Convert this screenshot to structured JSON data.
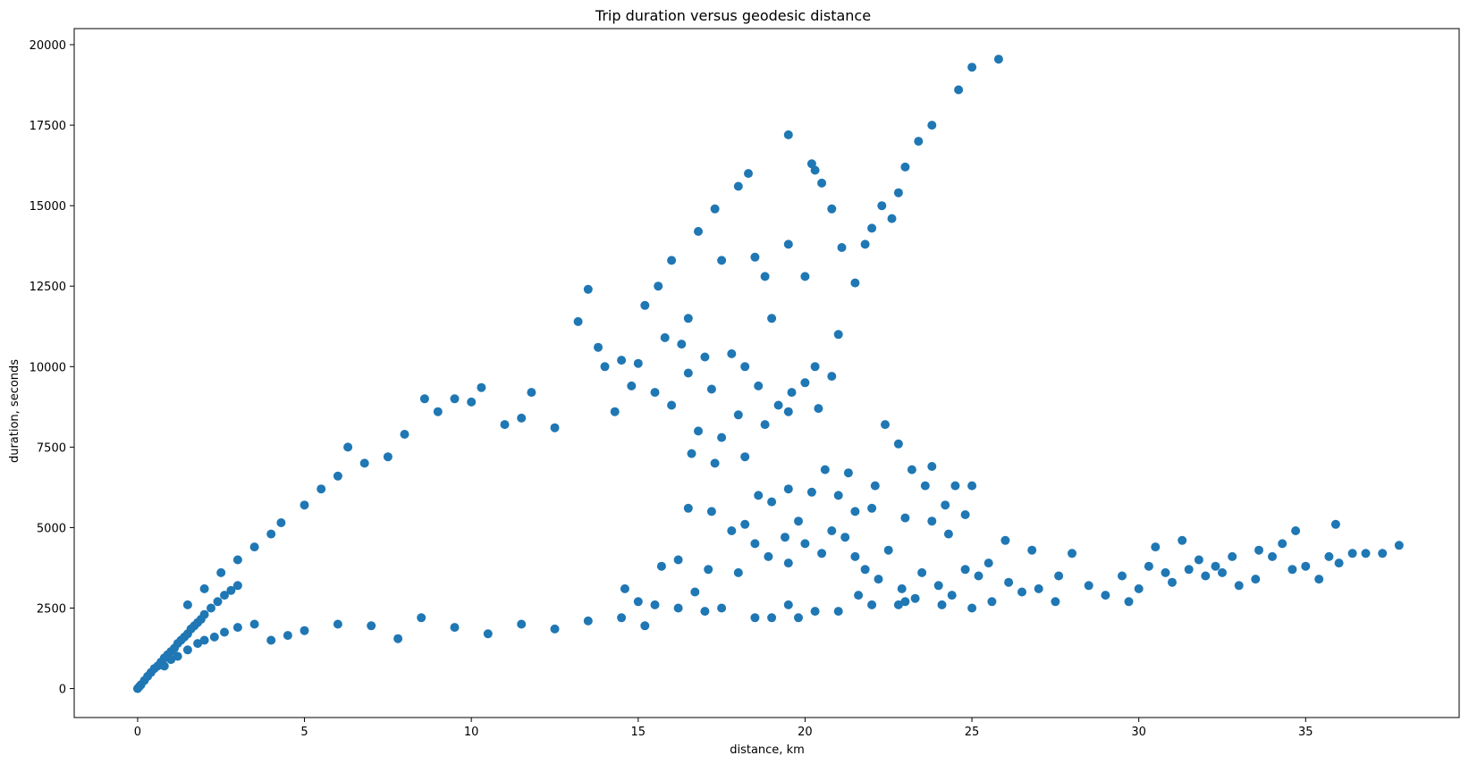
{
  "chart_data": {
    "type": "scatter",
    "title": "Trip duration versus geodesic distance",
    "xlabel": "distance, km",
    "ylabel": "duration, seconds",
    "xlim": [
      -1.9,
      39.6
    ],
    "ylim": [
      -900,
      20500
    ],
    "xticks": [
      0,
      5,
      10,
      15,
      20,
      25,
      30,
      35
    ],
    "yticks": [
      0,
      2500,
      5000,
      7500,
      10000,
      12500,
      15000,
      17500,
      20000
    ],
    "xtick_labels": [
      "0",
      "5",
      "10",
      "15",
      "20",
      "25",
      "30",
      "35"
    ],
    "ytick_labels": [
      "0",
      "2500",
      "5000",
      "7500",
      "10000",
      "12500",
      "15000",
      "17500",
      "20000"
    ],
    "grid": false,
    "legend": "none",
    "point_color": "#1f77b4",
    "series": [
      {
        "points": [
          [
            0.0,
            0
          ],
          [
            0.05,
            60
          ],
          [
            0.1,
            120
          ],
          [
            0.2,
            250
          ],
          [
            0.3,
            380
          ],
          [
            0.4,
            500
          ],
          [
            0.5,
            620
          ],
          [
            0.6,
            700
          ],
          [
            0.7,
            820
          ],
          [
            0.8,
            950
          ],
          [
            0.9,
            1050
          ],
          [
            1.0,
            1150
          ],
          [
            1.1,
            1250
          ],
          [
            1.2,
            1400
          ],
          [
            1.3,
            1500
          ],
          [
            1.4,
            1600
          ],
          [
            1.5,
            1700
          ],
          [
            1.6,
            1850
          ],
          [
            1.7,
            1950
          ],
          [
            1.8,
            2050
          ],
          [
            1.9,
            2150
          ],
          [
            2.0,
            2300
          ],
          [
            2.2,
            2500
          ],
          [
            2.4,
            2700
          ],
          [
            2.6,
            2900
          ],
          [
            2.8,
            3050
          ],
          [
            3.0,
            3200
          ],
          [
            0.8,
            700
          ],
          [
            1.0,
            900
          ],
          [
            1.2,
            1000
          ],
          [
            1.5,
            1200
          ],
          [
            1.8,
            1400
          ],
          [
            2.0,
            1500
          ],
          [
            2.3,
            1600
          ],
          [
            2.6,
            1750
          ],
          [
            3.0,
            1900
          ],
          [
            3.5,
            2000
          ],
          [
            4.0,
            1500
          ],
          [
            4.5,
            1650
          ],
          [
            5.0,
            1800
          ],
          [
            6.0,
            2000
          ],
          [
            7.0,
            1950
          ],
          [
            7.8,
            1550
          ],
          [
            8.5,
            2200
          ],
          [
            9.5,
            1900
          ],
          [
            10.5,
            1700
          ],
          [
            11.5,
            2000
          ],
          [
            12.5,
            1850
          ],
          [
            13.5,
            2100
          ],
          [
            14.5,
            2200
          ],
          [
            15.2,
            1950
          ],
          [
            16.2,
            2500
          ],
          [
            17.0,
            2400
          ],
          [
            17.5,
            2500
          ],
          [
            18.5,
            2200
          ],
          [
            19.0,
            2200
          ],
          [
            19.5,
            2600
          ],
          [
            21.0,
            2400
          ],
          [
            22.0,
            2600
          ],
          [
            23.0,
            2700
          ],
          [
            1.5,
            2600
          ],
          [
            2.0,
            3100
          ],
          [
            2.5,
            3600
          ],
          [
            3.0,
            4000
          ],
          [
            3.5,
            4400
          ],
          [
            4.0,
            4800
          ],
          [
            4.3,
            5150
          ],
          [
            5.0,
            5700
          ],
          [
            5.5,
            6200
          ],
          [
            6.0,
            6600
          ],
          [
            6.3,
            7500
          ],
          [
            6.8,
            7000
          ],
          [
            7.5,
            7200
          ],
          [
            8.0,
            7900
          ],
          [
            8.6,
            9000
          ],
          [
            9.0,
            8600
          ],
          [
            9.5,
            9000
          ],
          [
            10.0,
            8900
          ],
          [
            10.3,
            9350
          ],
          [
            11.0,
            8200
          ],
          [
            11.5,
            8400
          ],
          [
            11.8,
            9200
          ],
          [
            12.5,
            8100
          ],
          [
            13.2,
            11400
          ],
          [
            13.5,
            12400
          ],
          [
            13.8,
            10600
          ],
          [
            14.0,
            10000
          ],
          [
            14.5,
            10200
          ],
          [
            15.2,
            11900
          ],
          [
            15.6,
            12500
          ],
          [
            16.0,
            13300
          ],
          [
            16.5,
            11500
          ],
          [
            16.8,
            14200
          ],
          [
            17.3,
            14900
          ],
          [
            17.5,
            13300
          ],
          [
            18.0,
            15600
          ],
          [
            18.3,
            16000
          ],
          [
            18.5,
            13400
          ],
          [
            18.8,
            12800
          ],
          [
            19.0,
            11500
          ],
          [
            19.5,
            17200
          ],
          [
            19.5,
            13800
          ],
          [
            20.0,
            12800
          ],
          [
            20.2,
            16300
          ],
          [
            20.3,
            16100
          ],
          [
            20.5,
            15700
          ],
          [
            20.8,
            14900
          ],
          [
            21.1,
            13700
          ],
          [
            21.0,
            11000
          ],
          [
            21.5,
            12600
          ],
          [
            21.8,
            13800
          ],
          [
            22.0,
            14300
          ],
          [
            22.3,
            15000
          ],
          [
            22.6,
            14600
          ],
          [
            22.8,
            15400
          ],
          [
            23.0,
            16200
          ],
          [
            23.4,
            17000
          ],
          [
            23.8,
            17500
          ],
          [
            24.6,
            18600
          ],
          [
            25.0,
            19300
          ],
          [
            25.8,
            19550
          ],
          [
            20.3,
            10000
          ],
          [
            20.8,
            9700
          ],
          [
            19.6,
            9200
          ],
          [
            20.0,
            9500
          ],
          [
            20.4,
            8700
          ],
          [
            19.2,
            8800
          ],
          [
            18.6,
            9400
          ],
          [
            18.2,
            10000
          ],
          [
            17.8,
            10400
          ],
          [
            17.0,
            10300
          ],
          [
            16.3,
            10700
          ],
          [
            15.8,
            10900
          ],
          [
            15.0,
            10100
          ],
          [
            16.5,
            9800
          ],
          [
            17.2,
            9300
          ],
          [
            15.5,
            9200
          ],
          [
            16.0,
            8800
          ],
          [
            14.8,
            9400
          ],
          [
            14.3,
            8600
          ],
          [
            16.8,
            8000
          ],
          [
            17.5,
            7800
          ],
          [
            18.0,
            8500
          ],
          [
            18.8,
            8200
          ],
          [
            19.5,
            8600
          ],
          [
            16.6,
            7300
          ],
          [
            17.3,
            7000
          ],
          [
            18.2,
            7200
          ],
          [
            20.6,
            6800
          ],
          [
            21.3,
            6700
          ],
          [
            22.4,
            8200
          ],
          [
            22.8,
            7600
          ],
          [
            23.2,
            6800
          ],
          [
            23.8,
            6900
          ],
          [
            24.5,
            6300
          ],
          [
            25.0,
            6300
          ],
          [
            19.5,
            6200
          ],
          [
            20.2,
            6100
          ],
          [
            21.0,
            6000
          ],
          [
            21.5,
            5500
          ],
          [
            22.0,
            5600
          ],
          [
            23.0,
            5300
          ],
          [
            23.8,
            5200
          ],
          [
            24.2,
            5700
          ],
          [
            24.8,
            5400
          ],
          [
            19.0,
            5800
          ],
          [
            19.8,
            5200
          ],
          [
            18.2,
            5100
          ],
          [
            17.2,
            5500
          ],
          [
            16.5,
            5600
          ],
          [
            17.8,
            4900
          ],
          [
            18.5,
            4500
          ],
          [
            19.4,
            4700
          ],
          [
            20.0,
            4500
          ],
          [
            20.8,
            4900
          ],
          [
            21.2,
            4700
          ],
          [
            18.9,
            4100
          ],
          [
            19.5,
            3900
          ],
          [
            20.5,
            4200
          ],
          [
            21.5,
            4100
          ],
          [
            22.5,
            4300
          ],
          [
            21.8,
            3700
          ],
          [
            22.2,
            3400
          ],
          [
            22.9,
            3100
          ],
          [
            23.5,
            3600
          ],
          [
            24.0,
            3200
          ],
          [
            24.4,
            2900
          ],
          [
            24.8,
            3700
          ],
          [
            25.2,
            3500
          ],
          [
            25.0,
            2500
          ],
          [
            25.6,
            2700
          ],
          [
            26.1,
            3300
          ],
          [
            26.5,
            3000
          ],
          [
            27.0,
            3100
          ],
          [
            27.5,
            2700
          ],
          [
            26.8,
            4300
          ],
          [
            27.6,
            3500
          ],
          [
            28.0,
            4200
          ],
          [
            28.5,
            3200
          ],
          [
            29.0,
            2900
          ],
          [
            29.5,
            3500
          ],
          [
            29.7,
            2700
          ],
          [
            30.0,
            3100
          ],
          [
            30.3,
            3800
          ],
          [
            30.5,
            4400
          ],
          [
            30.8,
            3600
          ],
          [
            31.0,
            3300
          ],
          [
            31.3,
            4600
          ],
          [
            31.5,
            3700
          ],
          [
            31.8,
            4000
          ],
          [
            32.0,
            3500
          ],
          [
            32.3,
            3800
          ],
          [
            32.5,
            3600
          ],
          [
            32.8,
            4100
          ],
          [
            33.0,
            3200
          ],
          [
            33.5,
            3400
          ],
          [
            33.6,
            4300
          ],
          [
            34.0,
            4100
          ],
          [
            34.3,
            4500
          ],
          [
            34.6,
            3700
          ],
          [
            34.7,
            4900
          ],
          [
            35.0,
            3800
          ],
          [
            35.4,
            3400
          ],
          [
            35.7,
            4100
          ],
          [
            35.9,
            5100
          ],
          [
            36.0,
            3900
          ],
          [
            36.4,
            4200
          ],
          [
            36.8,
            4200
          ],
          [
            37.3,
            4200
          ],
          [
            37.8,
            4450
          ],
          [
            26.0,
            4600
          ],
          [
            25.5,
            3900
          ],
          [
            24.3,
            4800
          ],
          [
            23.6,
            6300
          ],
          [
            22.1,
            6300
          ],
          [
            18.0,
            3600
          ],
          [
            17.1,
            3700
          ],
          [
            16.2,
            4000
          ],
          [
            15.7,
            3800
          ],
          [
            18.6,
            6000
          ],
          [
            19.8,
            2200
          ],
          [
            20.3,
            2400
          ],
          [
            16.7,
            3000
          ],
          [
            15.5,
            2600
          ],
          [
            15.0,
            2700
          ],
          [
            14.6,
            3100
          ],
          [
            21.6,
            2900
          ],
          [
            22.8,
            2600
          ],
          [
            23.3,
            2800
          ],
          [
            24.1,
            2600
          ]
        ]
      }
    ]
  }
}
